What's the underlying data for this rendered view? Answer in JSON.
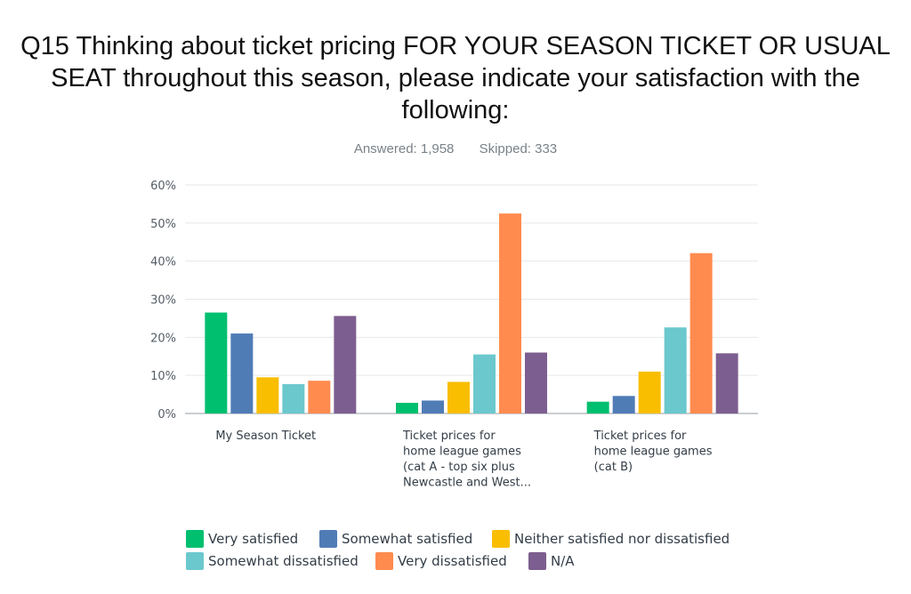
{
  "title": "Q15 Thinking about ticket pricing FOR YOUR SEASON TICKET OR USUAL SEAT throughout this season, please indicate your satisfaction with the following:",
  "stats": {
    "answered": "Answered: 1,958",
    "skipped": "Skipped: 333"
  },
  "colors": {
    "grid": "#e6e8ea",
    "axis": "#b9bec3",
    "tick_text": "#555d66",
    "category_text": "#333d47"
  },
  "chart_data": {
    "type": "bar",
    "categories": [
      [
        "My Season Ticket"
      ],
      [
        "Ticket prices for",
        "home league games",
        "(cat A - top six plus",
        "Newcastle and West..."
      ],
      [
        "Ticket prices for",
        "home league games",
        "(cat B)"
      ]
    ],
    "ylim": [
      0,
      60
    ],
    "yticks": [
      0,
      10,
      20,
      30,
      40,
      50,
      60
    ],
    "ytick_labels": [
      "0%",
      "10%",
      "20%",
      "30%",
      "40%",
      "50%",
      "60%"
    ],
    "grid": true,
    "legend_position": "bottom",
    "series": [
      {
        "name": "Very satisfied",
        "color": "#00bf6f",
        "values": [
          26.5,
          2.8,
          3.1
        ]
      },
      {
        "name": "Somewhat satisfied",
        "color": "#507cb6",
        "values": [
          21.0,
          3.4,
          4.6
        ]
      },
      {
        "name": "Neither satisfied nor dissatisfied",
        "color": "#f9be00",
        "values": [
          9.5,
          8.3,
          11.0
        ]
      },
      {
        "name": "Somewhat dissatisfied",
        "color": "#6bc8cd",
        "values": [
          7.7,
          15.5,
          22.6
        ]
      },
      {
        "name": "Very dissatisfied",
        "color": "#ff8b4f",
        "values": [
          8.6,
          52.5,
          42.1
        ]
      },
      {
        "name": "N/A",
        "color": "#7d5e90",
        "values": [
          25.6,
          16.0,
          15.8
        ]
      }
    ]
  }
}
